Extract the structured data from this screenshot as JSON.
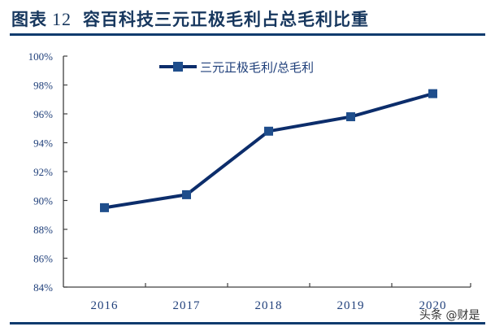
{
  "header": {
    "figure_label": "图表",
    "figure_number": "12",
    "title": "容百科技三元正极毛利占总毛利比重"
  },
  "watermark": "头条 @财是",
  "colors": {
    "title": "#17375e",
    "rule": "#0f3b6e",
    "line": "#0c2d6b",
    "marker": "#1f4e8c",
    "axis": "#404040",
    "tick_label": "#1f3f7a"
  },
  "chart_data": {
    "type": "line",
    "title": "容百科技三元正极毛利占总毛利比重",
    "xlabel": "",
    "ylabel": "",
    "categories": [
      "2016",
      "2017",
      "2018",
      "2019",
      "2020"
    ],
    "series": [
      {
        "name": "三元正极毛利/总毛利",
        "values": [
          89.5,
          90.4,
          94.8,
          95.8,
          97.4
        ],
        "unit": "%"
      }
    ],
    "ylim": [
      84,
      100
    ],
    "yticks": [
      "84%",
      "86%",
      "88%",
      "90%",
      "92%",
      "94%",
      "96%",
      "98%",
      "100%"
    ],
    "grid": false,
    "legend_position": "top-center-inside",
    "marker": "square"
  }
}
